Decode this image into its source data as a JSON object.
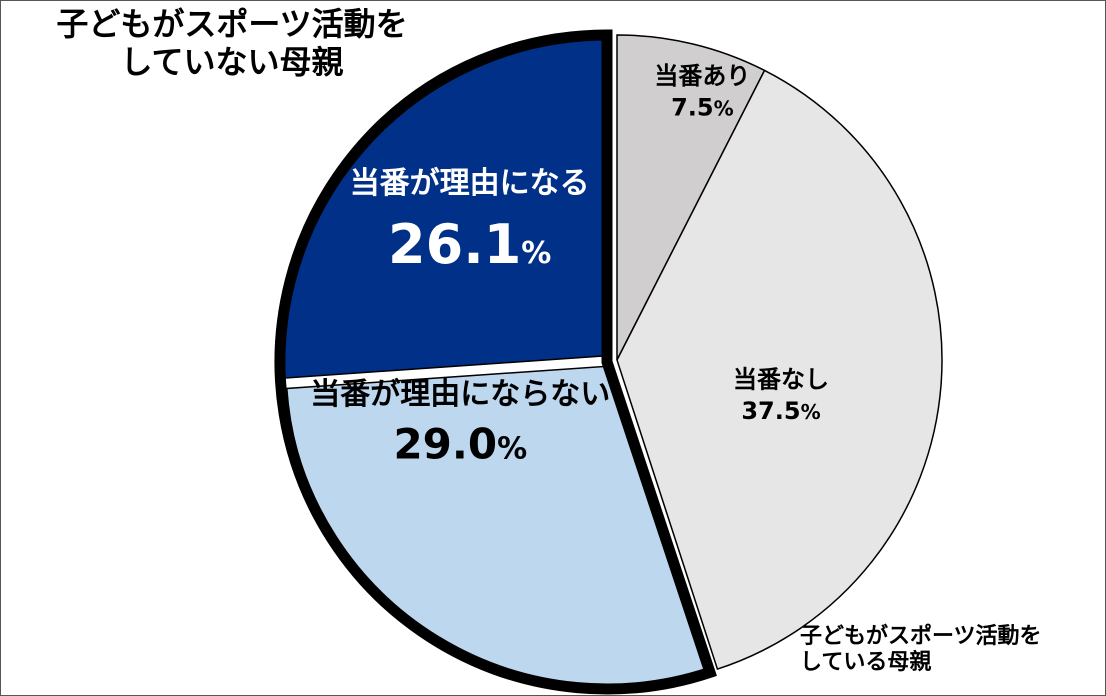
{
  "chart_data": {
    "type": "pie",
    "groups": [
      {
        "label_lines": [
          "子どもがスポーツ活動を",
          "していない母親"
        ],
        "slices": [
          {
            "label": "当番が理由になる",
            "value": "26.1",
            "unit": "%",
            "color": "#003087",
            "text_color": "#ffffff"
          },
          {
            "label": "当番が理由にならない",
            "value": "29.0",
            "unit": "%",
            "color": "#bdd7ee",
            "text_color": "#000000"
          }
        ]
      },
      {
        "label_lines": [
          "子どもがスポーツ活動を",
          "している母親"
        ],
        "slices": [
          {
            "label": "当番あり",
            "value": "7.5",
            "unit": "%",
            "color": "#d0cece",
            "text_color": "#000000"
          },
          {
            "label": "当番なし",
            "value": "37.5",
            "unit": "%",
            "color": "#e7e6e6",
            "text_color": "#000000"
          }
        ]
      }
    ]
  }
}
